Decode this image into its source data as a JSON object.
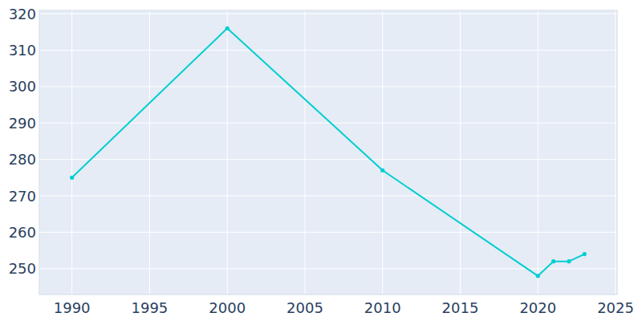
{
  "chart_data": {
    "type": "line",
    "x": [
      1990,
      2000,
      2010,
      2020,
      2021,
      2022,
      2023
    ],
    "values": [
      275,
      316,
      277,
      248,
      252,
      252,
      254
    ],
    "color": "#00ced1",
    "marker": "circle",
    "xlim": [
      1987.9,
      2025.1
    ],
    "xticks": [
      1990,
      1995,
      2000,
      2005,
      2010,
      2015,
      2020,
      2025
    ],
    "ylim": [
      242.9,
      320.9
    ],
    "yticks": [
      250,
      260,
      270,
      280,
      290,
      300,
      310,
      320
    ],
    "grid": true
  }
}
